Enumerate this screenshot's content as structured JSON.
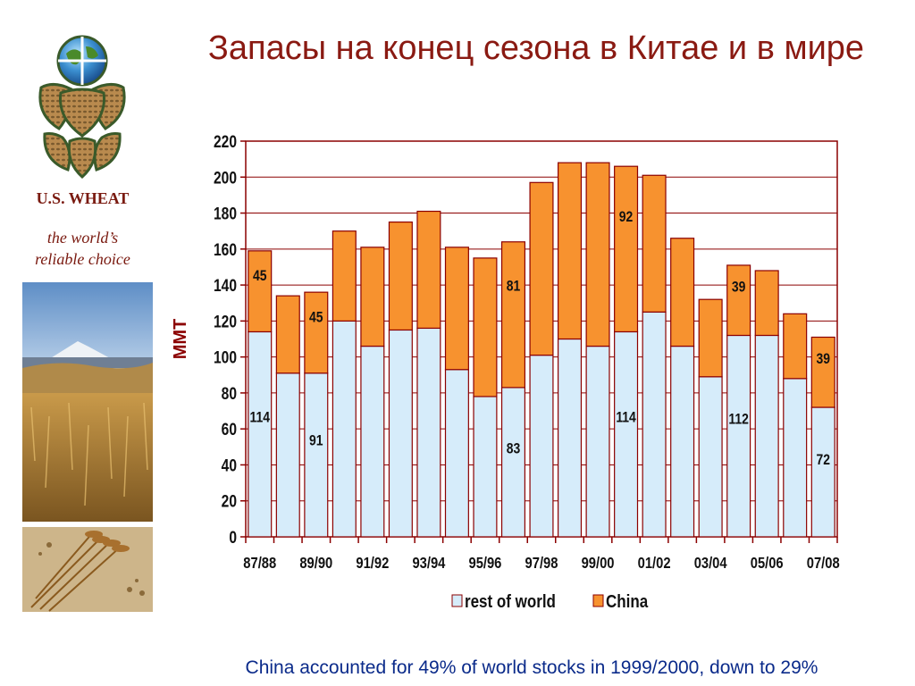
{
  "title": "Запасы на конец сезона в Китае и в мире",
  "brand": {
    "name": "U.S. WHEAT",
    "tagline_line1": "the world’s",
    "tagline_line2": "reliable choice"
  },
  "caption": "China accounted for 49% of world stocks in 1999/2000, down to 29%",
  "colors": {
    "rest_of_world": "#d6ecfa",
    "china": "#f7922f",
    "title": "#8a1a12",
    "caption": "#0a2a8a"
  },
  "chart_data": {
    "type": "bar",
    "stacked": true,
    "ylabel": "MMT",
    "ylim": [
      0,
      220
    ],
    "yticks": [
      0,
      20,
      40,
      60,
      80,
      100,
      120,
      140,
      160,
      180,
      200,
      220
    ],
    "grid": true,
    "legend_position": "bottom",
    "categories": [
      "87/88",
      "88/89",
      "89/90",
      "90/91",
      "91/92",
      "92/93",
      "93/94",
      "94/95",
      "95/96",
      "96/97",
      "97/98",
      "98/99",
      "99/00",
      "00/01",
      "01/02",
      "02/03",
      "03/04",
      "04/05",
      "05/06",
      "06/07",
      "07/08"
    ],
    "tick_labels": [
      "87/88",
      "",
      "89/90",
      "",
      "91/92",
      "",
      "93/94",
      "",
      "95/96",
      "",
      "97/98",
      "",
      "99/00",
      "",
      "01/02",
      "",
      "03/04",
      "",
      "05/06",
      "",
      "07/08"
    ],
    "series": [
      {
        "name": "rest of world",
        "values": [
          114,
          91,
          91,
          120,
          106,
          115,
          116,
          93,
          78,
          83,
          101,
          110,
          106,
          114,
          125,
          106,
          89,
          112,
          112,
          88,
          72
        ],
        "labels": [
          "114",
          "",
          "91",
          "",
          "",
          "",
          "",
          "",
          "",
          "83",
          "",
          "",
          "",
          "114",
          "",
          "",
          "",
          "112",
          "",
          "",
          "72"
        ]
      },
      {
        "name": "China",
        "values": [
          45,
          43,
          45,
          50,
          55,
          60,
          65,
          68,
          77,
          81,
          96,
          98,
          102,
          92,
          76,
          60,
          43,
          39,
          36,
          36,
          39
        ],
        "labels": [
          "45",
          "",
          "45",
          "",
          "",
          "",
          "",
          "",
          "",
          "81",
          "",
          "",
          "",
          "92",
          "",
          "",
          "",
          "39",
          "",
          "",
          "39"
        ]
      }
    ]
  }
}
